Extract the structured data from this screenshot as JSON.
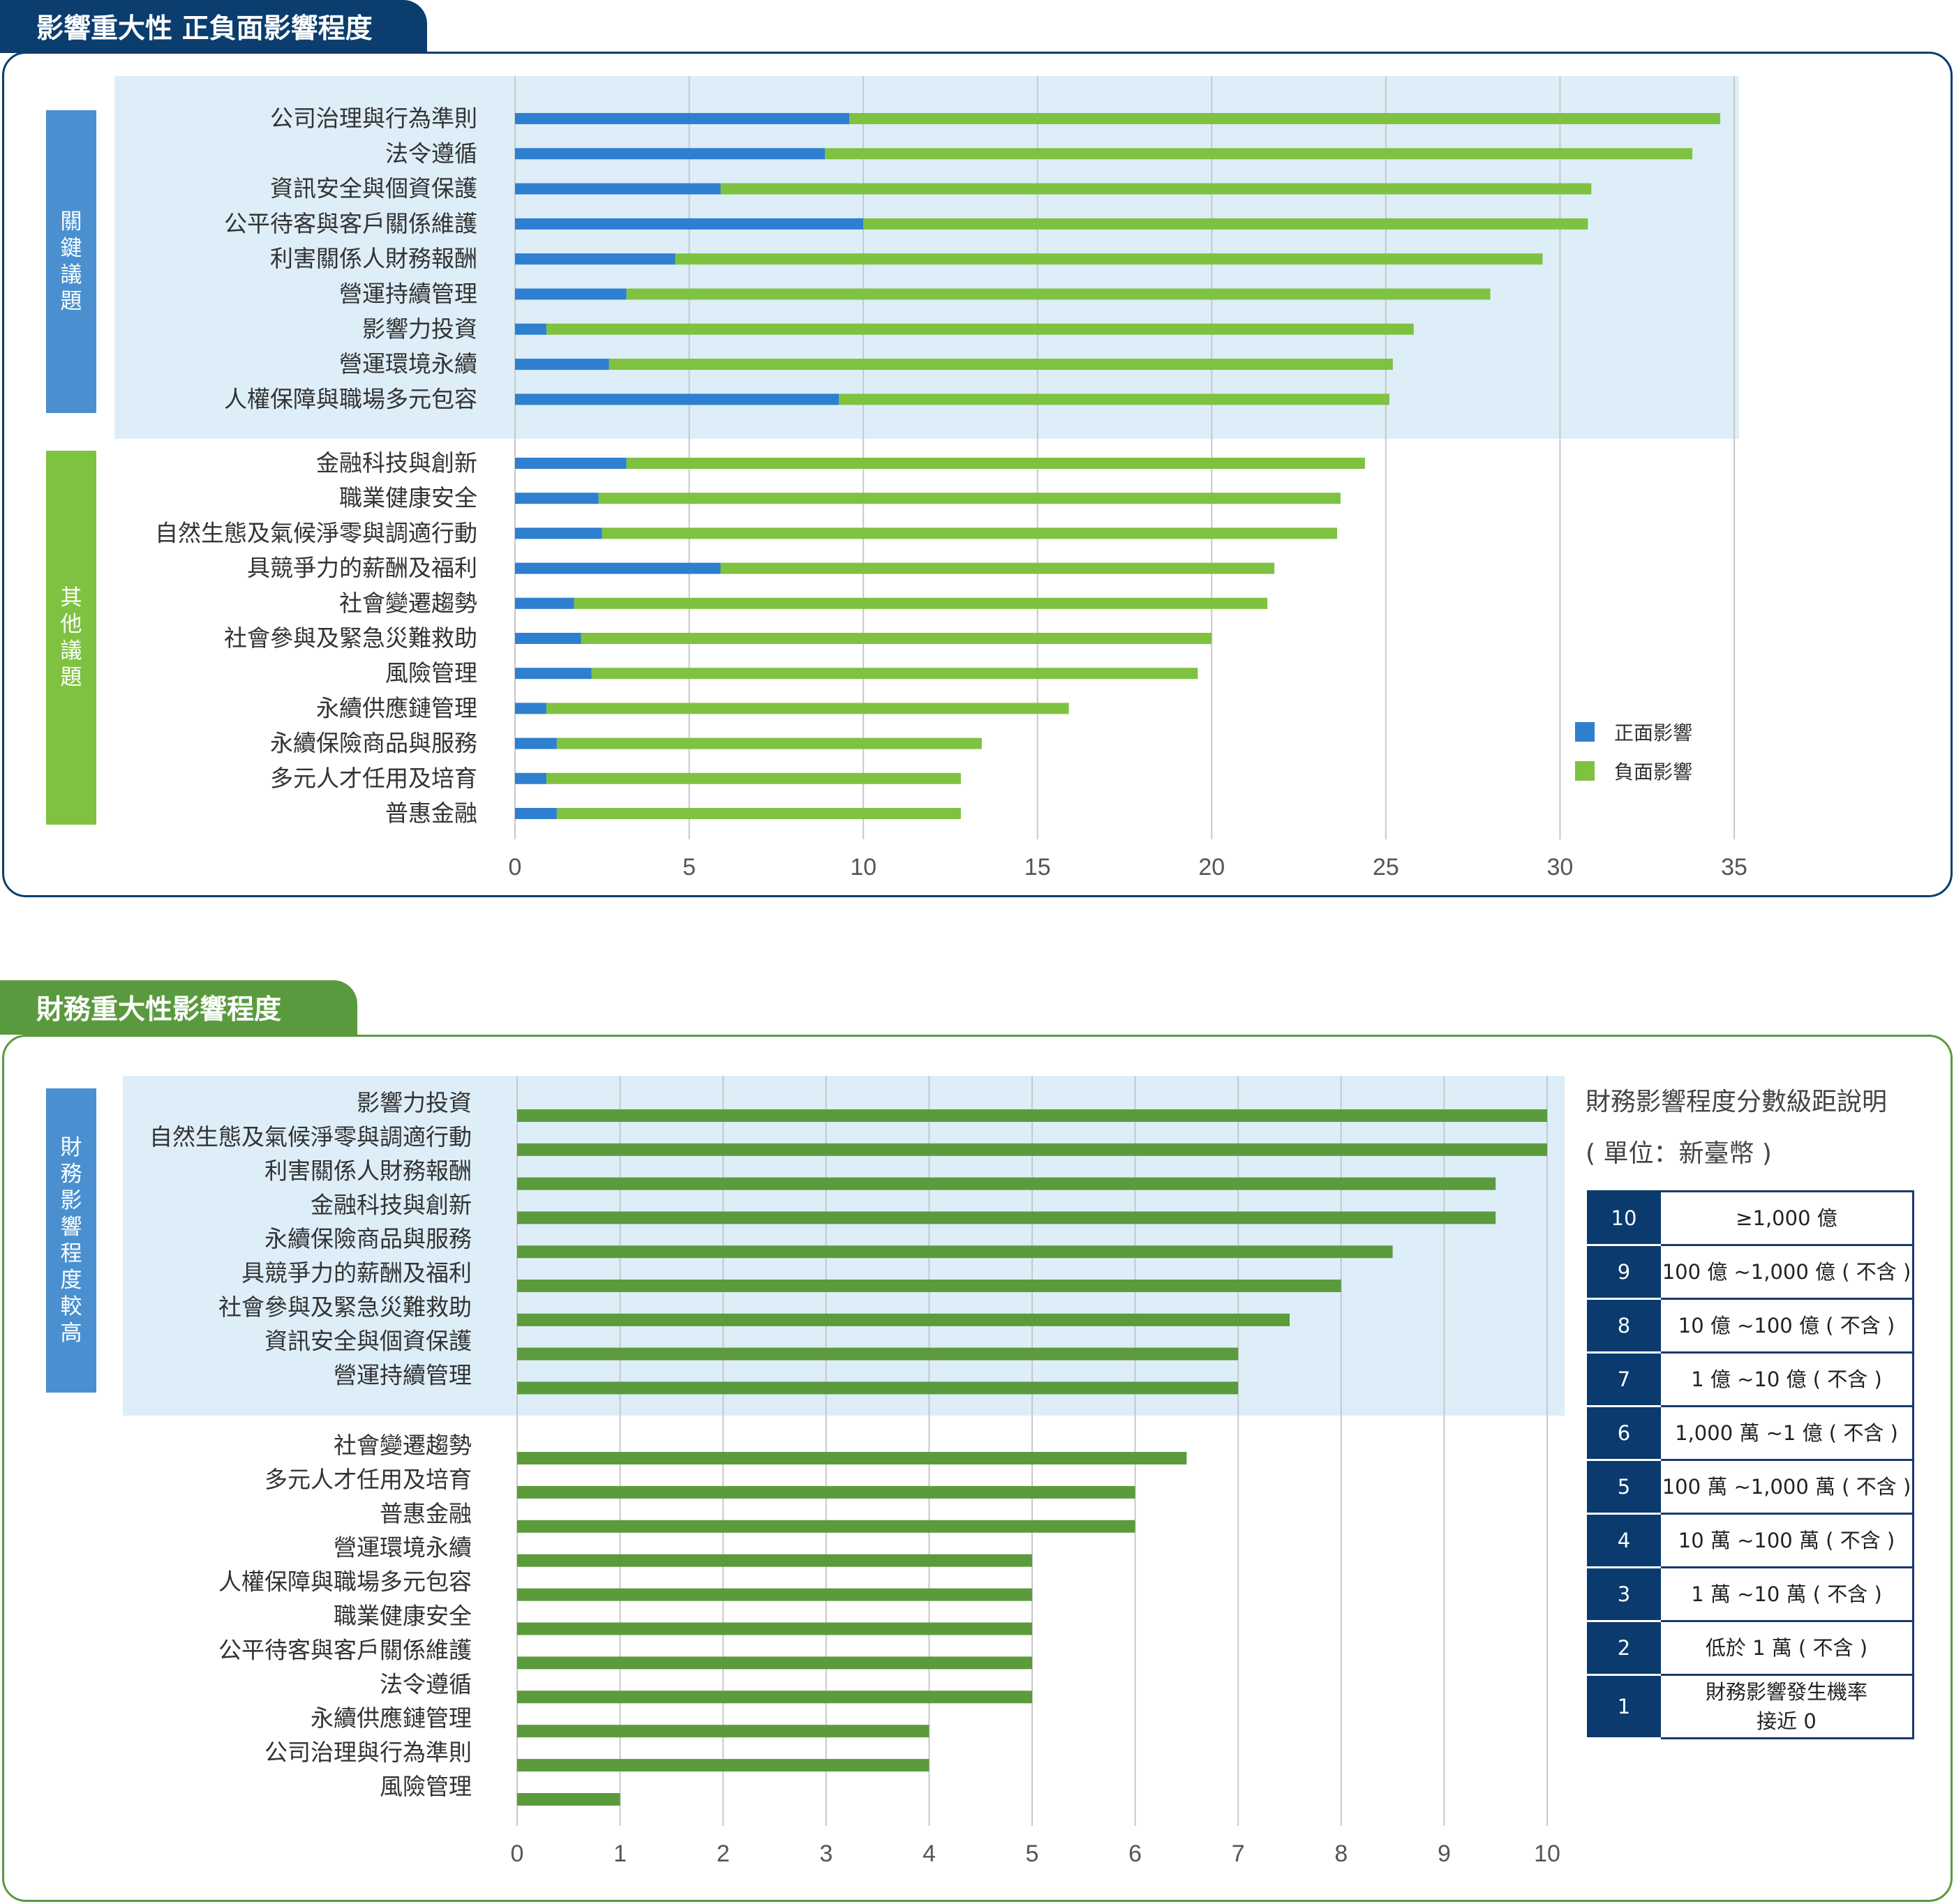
{
  "panel1": {
    "title": "影響重大性 正負面影響程度",
    "group_labels": [
      "關鍵議題",
      "其他議題"
    ],
    "legend": [
      "正面影響",
      "負面影響"
    ]
  },
  "panel2": {
    "title": "財務重大性影響程度",
    "group_label": "財務影響程度較高",
    "scale_title": "財務影響程度分數級距說明",
    "scale_unit": "( 單位：新臺幣 )",
    "scale_rows": [
      {
        "score": "10",
        "desc": "≥1,000 億"
      },
      {
        "score": "9",
        "desc": "100 億 ~1,000 億 ( 不含 )"
      },
      {
        "score": "8",
        "desc": "10 億 ~100 億 ( 不含 )"
      },
      {
        "score": "7",
        "desc": "1 億 ~10 億 ( 不含 )"
      },
      {
        "score": "6",
        "desc": "1,000 萬 ~1 億 ( 不含 )"
      },
      {
        "score": "5",
        "desc": "100 萬 ~1,000 萬 ( 不含 )"
      },
      {
        "score": "4",
        "desc": "10 萬 ~100 萬 ( 不含 )"
      },
      {
        "score": "3",
        "desc": "1 萬 ~10 萬 ( 不含 )"
      },
      {
        "score": "2",
        "desc": "低於 1 萬 ( 不含 )"
      },
      {
        "score": "1",
        "desc": "財務影響發生機率 接近 0"
      }
    ]
  },
  "colors": {
    "navy": "#0b3d6e",
    "panel2_green": "#5a9a3e",
    "positive": "#2e7fd0",
    "negative": "#7fc241",
    "finance_bar": "#5b9b3c",
    "key_label": "#4a90d0",
    "other_label": "#7fc241",
    "highlight": "#ddeef9",
    "grid": "#c8c8c8"
  },
  "chart_data": [
    {
      "type": "bar",
      "orientation": "horizontal",
      "stacked": true,
      "title": "",
      "xlim": [
        0,
        35
      ],
      "xticks": [
        0,
        5,
        10,
        15,
        20,
        25,
        30,
        35
      ],
      "grid": true,
      "legend_position": "bottom-right",
      "categories": [
        "公司治理與行為準則",
        "法令遵循",
        "資訊安全與個資保護",
        "公平待客與客戶關係維護",
        "利害關係人財務報酬",
        "營運持續管理",
        "影響力投資",
        "營運環境永續",
        "人權保障與職場多元包容",
        "金融科技與創新",
        "職業健康安全",
        "自然生態及氣候淨零與調適行動",
        "具競爭力的薪酬及福利",
        "社會變遷趨勢",
        "社會參與及緊急災難救助",
        "風險管理",
        "永續供應鏈管理",
        "永續保險商品與服務",
        "多元人才任用及培育",
        "普惠金融"
      ],
      "key_count": 9,
      "series": [
        {
          "name": "正面影響",
          "values": [
            9.6,
            8.9,
            5.9,
            10.0,
            4.6,
            3.2,
            0.9,
            2.7,
            9.3,
            3.2,
            2.4,
            2.5,
            5.9,
            1.7,
            1.9,
            2.2,
            0.9,
            1.2,
            0.9,
            1.2
          ]
        },
        {
          "name": "負面影響",
          "values": [
            25.0,
            24.9,
            25.0,
            20.8,
            24.9,
            24.8,
            24.9,
            22.5,
            15.8,
            21.2,
            21.3,
            21.1,
            15.9,
            19.9,
            18.1,
            17.4,
            15.0,
            12.2,
            11.9,
            11.6
          ]
        }
      ]
    },
    {
      "type": "bar",
      "orientation": "horizontal",
      "title": "",
      "xlim": [
        0,
        10
      ],
      "xticks": [
        0,
        1,
        2,
        3,
        4,
        5,
        6,
        7,
        8,
        9,
        10
      ],
      "grid": true,
      "categories": [
        "影響力投資",
        "自然生態及氣候淨零與調適行動",
        "利害關係人財務報酬",
        "金融科技與創新",
        "永續保險商品與服務",
        "具競爭力的薪酬及福利",
        "社會參與及緊急災難救助",
        "資訊安全與個資保護",
        "營運持續管理",
        "社會變遷趨勢",
        "多元人才任用及培育",
        "普惠金融",
        "營運環境永續",
        "人權保障與職場多元包容",
        "職業健康安全",
        "公平待客與客戶關係維護",
        "法令遵循",
        "永續供應鏈管理",
        "公司治理與行為準則",
        "風險管理"
      ],
      "key_count": 9,
      "values": [
        10,
        10,
        9.5,
        9.5,
        8.5,
        8,
        7.5,
        7,
        7,
        6.5,
        6,
        6,
        5,
        5,
        5,
        5,
        5,
        4,
        4,
        1
      ]
    }
  ]
}
